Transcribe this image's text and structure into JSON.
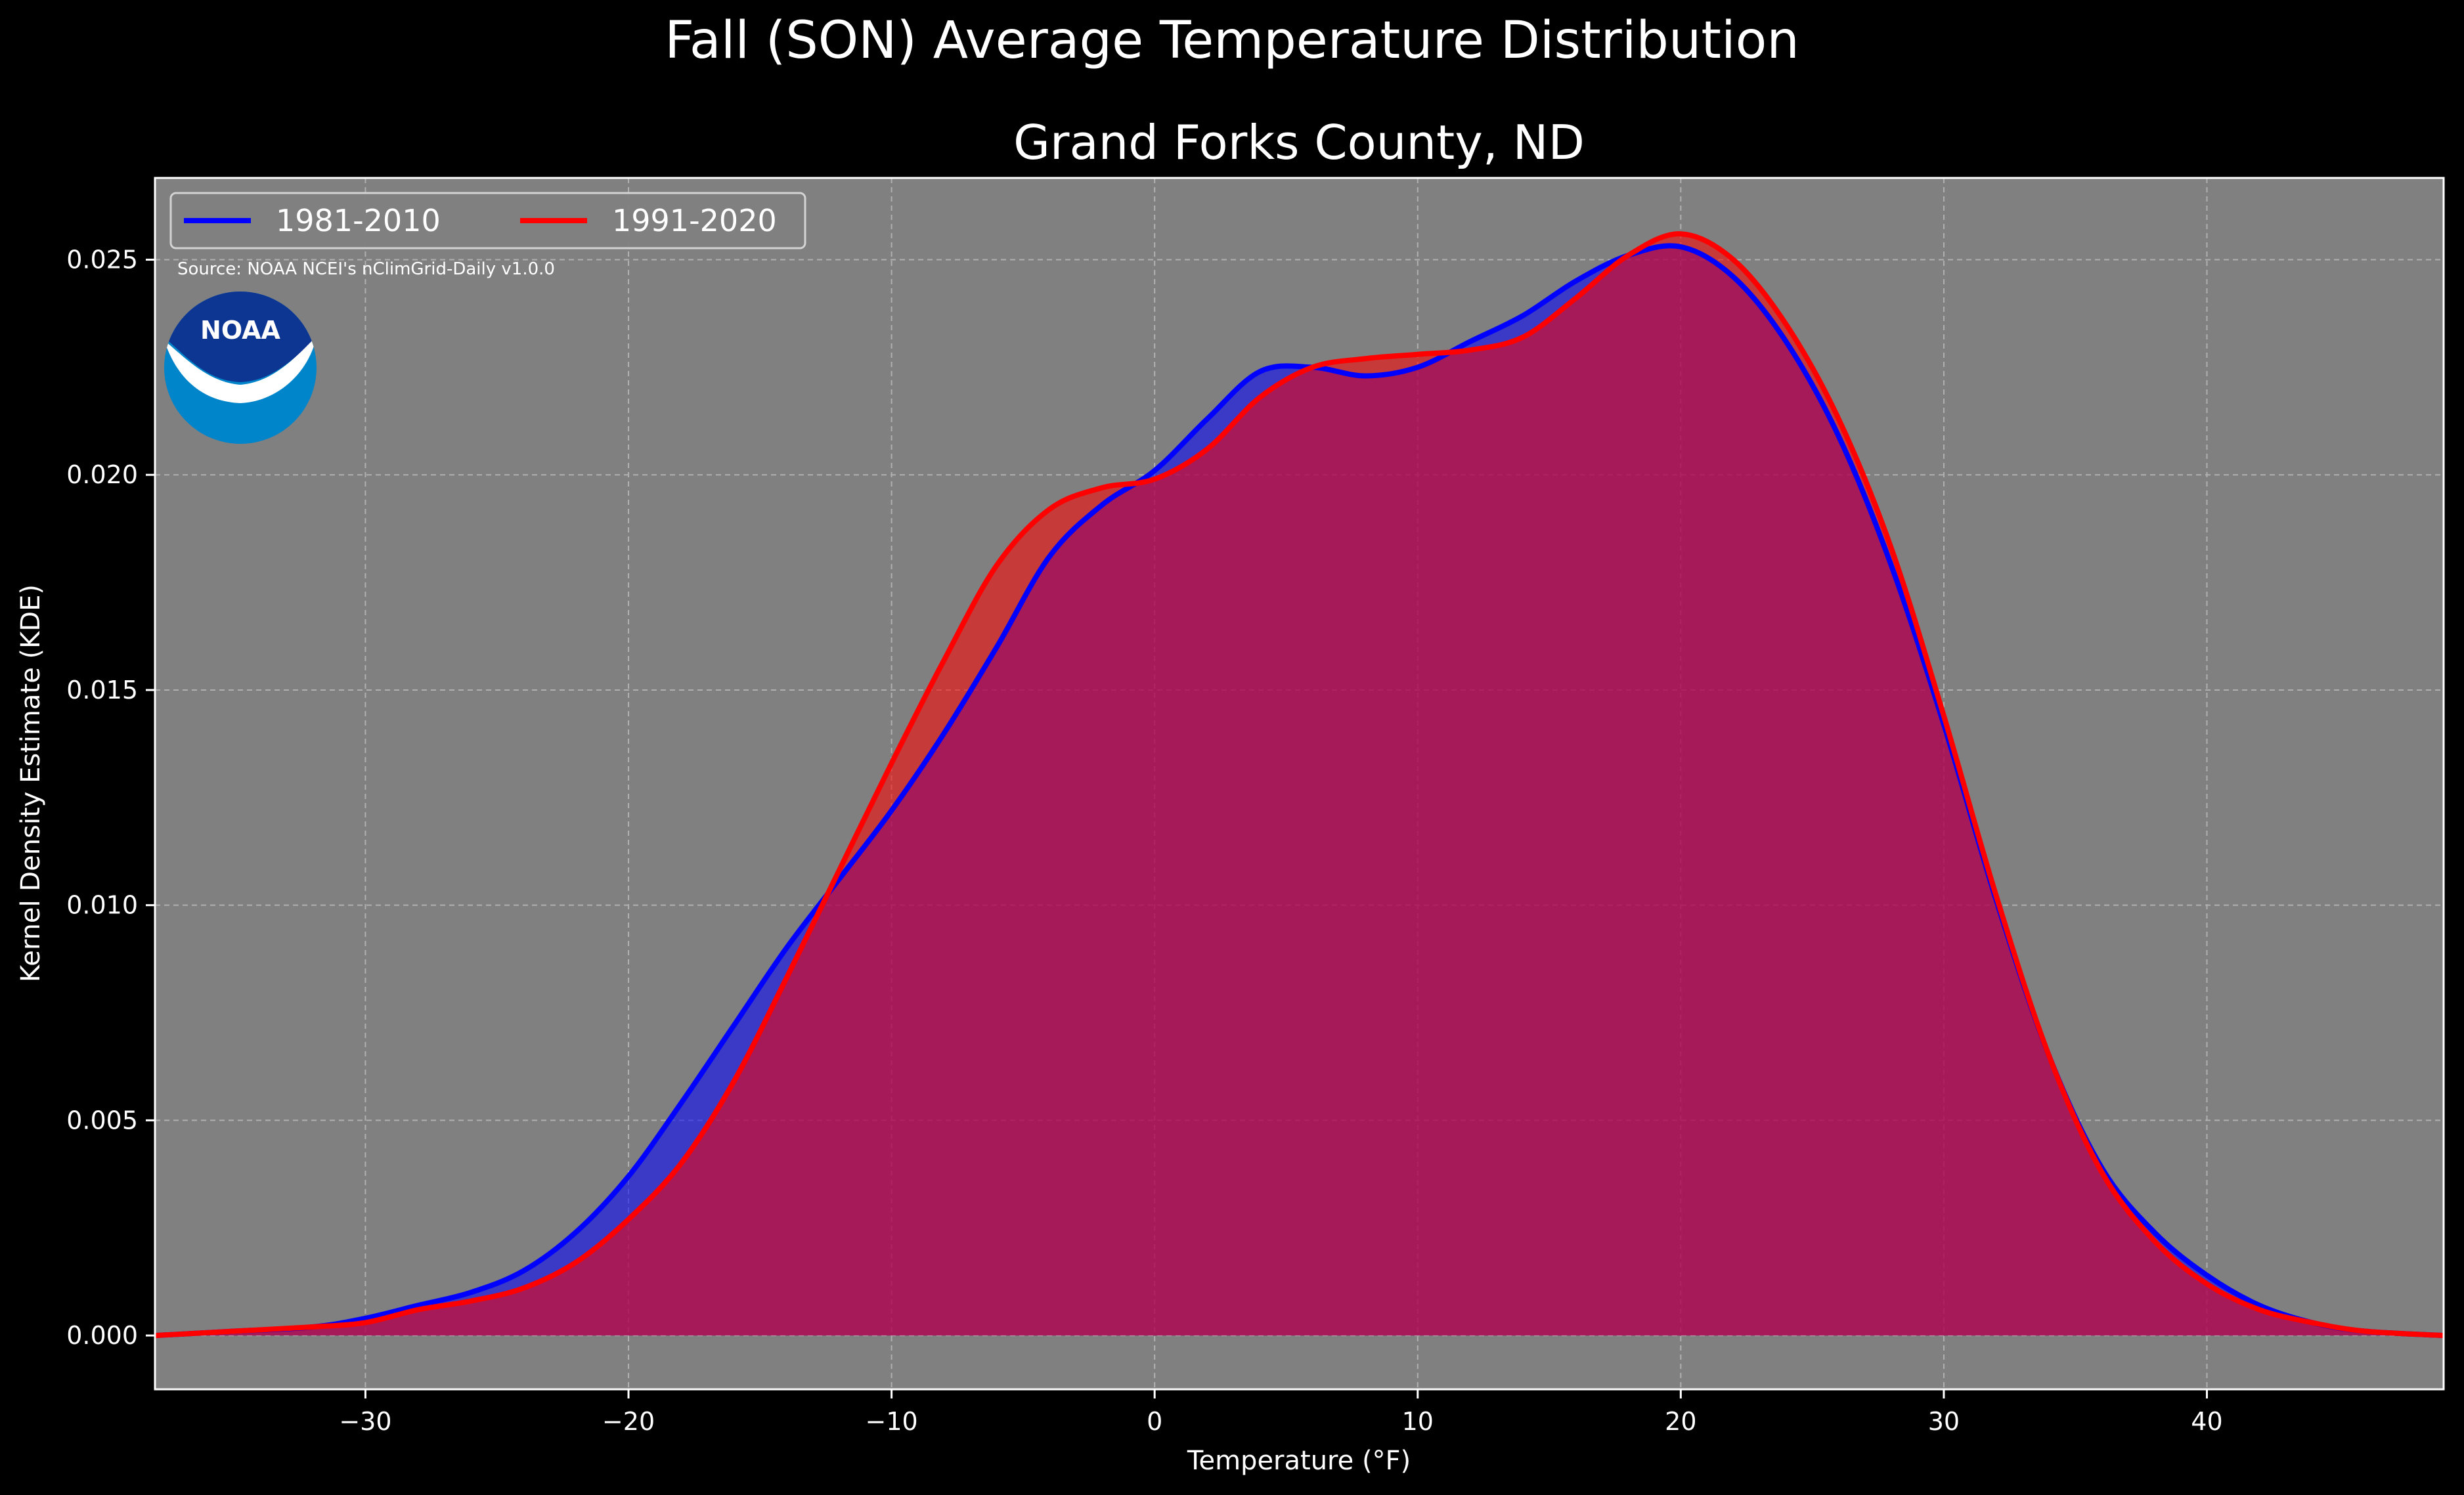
{
  "chart_data": {
    "type": "area",
    "suptitle": "Fall (SON) Average Temperature Distribution",
    "title": "Grand Forks County, ND",
    "xlabel": "Temperature (°F)",
    "ylabel": "Kernel Density Estimate (KDE)",
    "xlim": [
      -38,
      49
    ],
    "ylim": [
      -0.00125,
      0.0269
    ],
    "xticks": [
      -30,
      -20,
      -10,
      0,
      10,
      20,
      30,
      40
    ],
    "xtick_labels": [
      "−30",
      "−20",
      "−10",
      "0",
      "10",
      "20",
      "30",
      "40"
    ],
    "yticks": [
      0.0,
      0.005,
      0.01,
      0.015,
      0.02,
      0.025
    ],
    "ytick_labels": [
      "0.000",
      "0.005",
      "0.010",
      "0.015",
      "0.020",
      "0.025"
    ],
    "grid": true,
    "legend_position": "top-left",
    "source_note": "Source: NOAA NCEI's nClimGrid-Daily v1.0.0",
    "logo_text": "NOAA",
    "colors": {
      "figure_background": "#000000",
      "axes_background": "#808080",
      "series_1": "#0000ff",
      "series_2": "#ff0000",
      "noaa_dark": "#0d3592",
      "noaa_light": "#0085ca"
    },
    "series": [
      {
        "name": "1981-2010",
        "color": "#0000ff",
        "x": [
          -38,
          -35,
          -32,
          -30,
          -28,
          -26,
          -24,
          -22,
          -20,
          -18,
          -16,
          -14,
          -12,
          -10,
          -8,
          -6,
          -4,
          -2,
          0,
          2,
          4,
          6,
          8,
          10,
          12,
          14,
          16,
          18,
          20,
          22,
          24,
          26,
          28,
          30,
          32,
          34,
          36,
          38,
          40,
          42,
          44,
          46,
          49
        ],
        "y": [
          0.0,
          0.0001,
          0.0002,
          0.0004,
          0.0007,
          0.001,
          0.0015,
          0.0024,
          0.0037,
          0.0054,
          0.0072,
          0.009,
          0.0106,
          0.0122,
          0.014,
          0.016,
          0.0181,
          0.0193,
          0.0201,
          0.0213,
          0.0224,
          0.0225,
          0.0223,
          0.0225,
          0.0231,
          0.0237,
          0.0245,
          0.0251,
          0.0253,
          0.0246,
          0.0231,
          0.0209,
          0.0179,
          0.0142,
          0.0101,
          0.0065,
          0.0039,
          0.0024,
          0.0014,
          0.0007,
          0.0003,
          0.0001,
          0.0
        ]
      },
      {
        "name": "1991-2020",
        "color": "#ff0000",
        "x": [
          -38,
          -35,
          -32,
          -30,
          -28,
          -26,
          -24,
          -22,
          -20,
          -18,
          -16,
          -14,
          -12,
          -10,
          -8,
          -6,
          -4,
          -2,
          0,
          2,
          4,
          6,
          8,
          10,
          12,
          14,
          16,
          18,
          20,
          22,
          24,
          26,
          28,
          30,
          32,
          34,
          36,
          38,
          40,
          42,
          44,
          46,
          49
        ],
        "y": [
          0.0,
          0.0001,
          0.0002,
          0.0003,
          0.0006,
          0.0008,
          0.0011,
          0.0017,
          0.0027,
          0.004,
          0.0059,
          0.0083,
          0.0108,
          0.0133,
          0.0157,
          0.0179,
          0.0192,
          0.0197,
          0.0199,
          0.0206,
          0.0218,
          0.0225,
          0.0227,
          0.0228,
          0.0229,
          0.0232,
          0.0241,
          0.0251,
          0.0256,
          0.025,
          0.0235,
          0.0213,
          0.0183,
          0.0144,
          0.0102,
          0.0065,
          0.0038,
          0.0022,
          0.0012,
          0.0006,
          0.0003,
          0.0001,
          0.0
        ]
      }
    ]
  }
}
